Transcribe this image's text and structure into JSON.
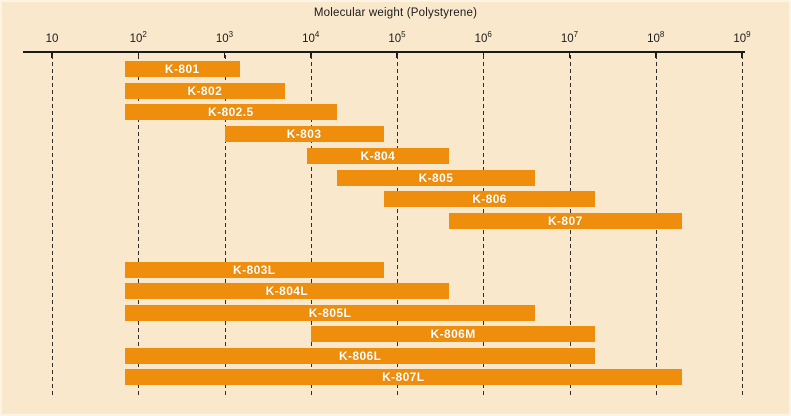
{
  "title": "Molecular weight (Polystyrene)",
  "colors": {
    "background": "#FAE8CC",
    "bar": "#EF8E0C",
    "bar_label": "#FFFFFF",
    "axis": "#1A1A1A",
    "gridline": "#2E2E2E"
  },
  "chart_data": {
    "type": "bar",
    "orientation": "horizontal-range",
    "title": "Molecular weight (Polystyrene)",
    "xscale": "log",
    "xlim": [
      10,
      1000000000
    ],
    "xticks": [
      "10",
      "10^2",
      "10^3",
      "10^4",
      "10^5",
      "10^6",
      "10^7",
      "10^8",
      "10^9"
    ],
    "grid": "vertical-dashed",
    "legend": "none",
    "series": [
      {
        "name": "K-801",
        "range": [
          70,
          1500
        ],
        "group": 1
      },
      {
        "name": "K-802",
        "range": [
          70,
          5000
        ],
        "group": 1
      },
      {
        "name": "K-802.5",
        "range": [
          70,
          20000
        ],
        "group": 1
      },
      {
        "name": "K-803",
        "range": [
          1000,
          70000
        ],
        "group": 1
      },
      {
        "name": "K-804",
        "range": [
          9000,
          400000
        ],
        "group": 1
      },
      {
        "name": "K-805",
        "range": [
          20000,
          4000000
        ],
        "group": 1
      },
      {
        "name": "K-806",
        "range": [
          70000,
          20000000
        ],
        "group": 1
      },
      {
        "name": "K-807",
        "range": [
          400000,
          200000000
        ],
        "group": 1
      },
      {
        "name": "K-803L",
        "range": [
          70,
          70000
        ],
        "group": 2
      },
      {
        "name": "K-804L",
        "range": [
          70,
          400000
        ],
        "group": 2
      },
      {
        "name": "K-805L",
        "range": [
          70,
          4000000
        ],
        "group": 2
      },
      {
        "name": "K-806M",
        "range": [
          10000,
          20000000
        ],
        "group": 2
      },
      {
        "name": "K-806L",
        "range": [
          70,
          20000000
        ],
        "group": 2
      },
      {
        "name": "K-807L",
        "range": [
          70,
          200000000
        ],
        "group": 2
      }
    ]
  }
}
